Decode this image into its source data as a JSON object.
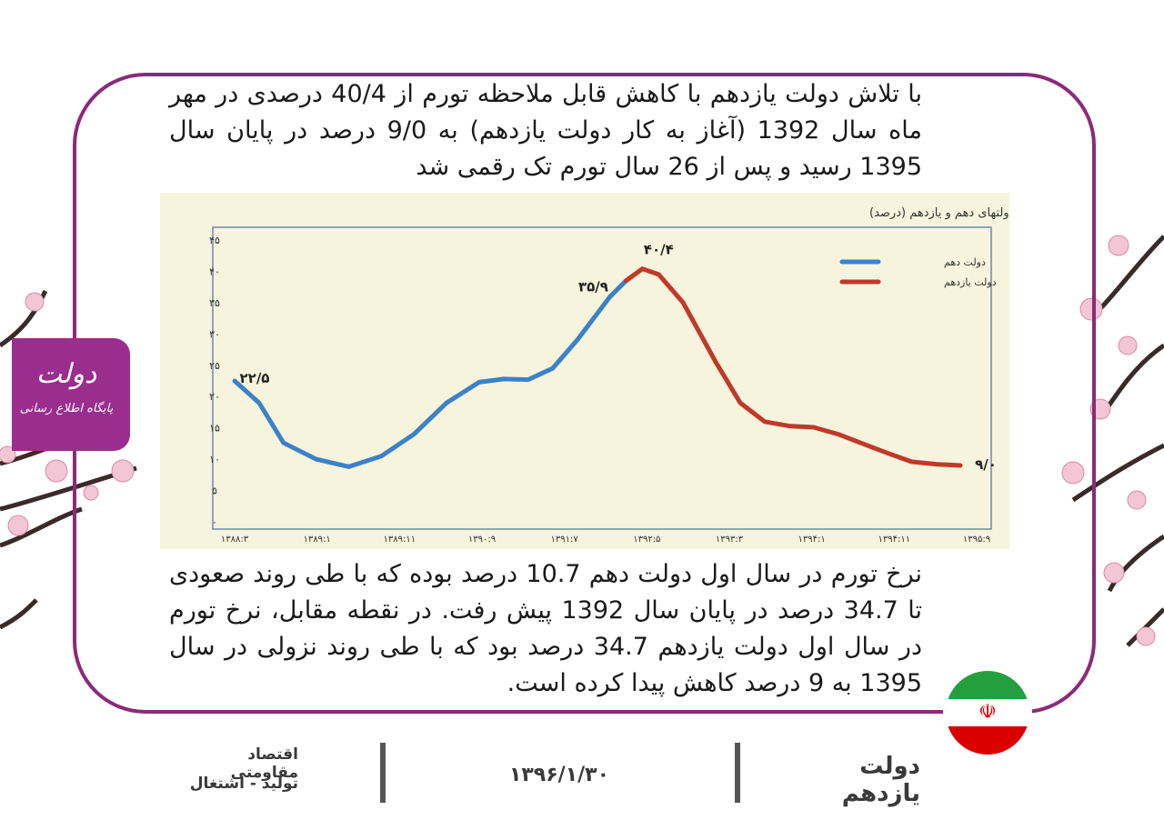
{
  "paragraph_top": "با تلاش دولت یازدهم با کاهش قابل ملاحظه تورم از 40/4 درصدی در مهر ماه سال 1392 (آغاز به کار دولت یازدهم) به 9/0 درصد در پایان سال 1395 رسید و پس از 26 سال تورم تک رقمی شد",
  "paragraph_bottom": "نرخ تورم در سال اول دولت دهم 10.7 درصد بوده که با طی روند صعودی تا 34.7 درصد در پایان سال 1392 پیش رفت. در نقطه مقابل، نرخ تورم در سال اول دولت یازدهم 34.7 درصد بود که با طی روند نزولی در سال 1395 به 9 درصد کاهش پیدا کرده است.",
  "logo": {
    "line1": "دولت",
    "line2": "پایگاه اطلاع رسانی"
  },
  "footer": {
    "category_line1": "اقتصاد مقاومتی",
    "category_line2": "تولید - اشتغال",
    "date": "۱۳۹۶/۱/۳۰",
    "government": "دولت یازدهم"
  },
  "colors": {
    "frame": "#8b2a7a",
    "tenth": "#3b82c8",
    "eleventh": "#c0392b",
    "chart_bg": "#f6f4dc"
  },
  "icons": {
    "flag": "iran-flag-icon",
    "emblem": "☫"
  },
  "chart_data": {
    "type": "line",
    "title": "مقایسه نرخ تورم دوازده ماهه منتهی به هرماه در دوران تصدی دولتهای دهم و یازدهم (درصد)",
    "ylim": [
      0,
      45
    ],
    "y_ticks": [
      "۰",
      "۵",
      "۱۰",
      "۱۵",
      "۲۰",
      "۲۵",
      "۳۰",
      "۳۵",
      "۴۰",
      "۴۵"
    ],
    "y_tick_values": [
      0,
      5,
      10,
      15,
      20,
      25,
      30,
      35,
      40,
      45
    ],
    "x_ticks": [
      "۱۳۸۸:۳",
      "۱۳۸۹:۱",
      "۱۳۸۹:۱۱",
      "۱۳۹۰:۹",
      "۱۳۹۱:۷",
      "۱۳۹۲:۵",
      "۱۳۹۳:۳",
      "۱۳۹۴:۱",
      "۱۳۹۴:۱۱",
      "۱۳۹۵:۹"
    ],
    "x_range": [
      0,
      91
    ],
    "legend_position": "top-right",
    "series": [
      {
        "name": "دولت دهم",
        "color": "#3b82c8",
        "points": [
          [
            0,
            22.5
          ],
          [
            3,
            19
          ],
          [
            6,
            12.6
          ],
          [
            10,
            10
          ],
          [
            14,
            8.8
          ],
          [
            18,
            10.5
          ],
          [
            22,
            14
          ],
          [
            26,
            19
          ],
          [
            30,
            22.3
          ],
          [
            33,
            22.8
          ],
          [
            36,
            22.7
          ],
          [
            39,
            24.5
          ],
          [
            42,
            29
          ],
          [
            46,
            35.9
          ],
          [
            48,
            38.5
          ]
        ]
      },
      {
        "name": "دولت یازدهم",
        "color": "#c0392b",
        "points": [
          [
            48,
            38.5
          ],
          [
            50,
            40.4
          ],
          [
            52,
            39.5
          ],
          [
            55,
            35
          ],
          [
            59,
            25.5
          ],
          [
            62,
            19
          ],
          [
            65,
            16
          ],
          [
            68,
            15.3
          ],
          [
            71,
            15.1
          ],
          [
            74,
            14
          ],
          [
            77,
            12.5
          ],
          [
            80,
            11
          ],
          [
            83,
            9.6
          ],
          [
            86,
            9.2
          ],
          [
            89,
            9.0
          ]
        ]
      }
    ],
    "annotations": [
      {
        "text": "۲۲/۵",
        "x": 0,
        "y": 22.5
      },
      {
        "text": "۳۵/۹",
        "x": 46,
        "y": 35.9
      },
      {
        "text": "۴۰/۴",
        "x": 50,
        "y": 40.4
      },
      {
        "text": "۹/۰",
        "x": 89,
        "y": 9.0
      }
    ]
  }
}
